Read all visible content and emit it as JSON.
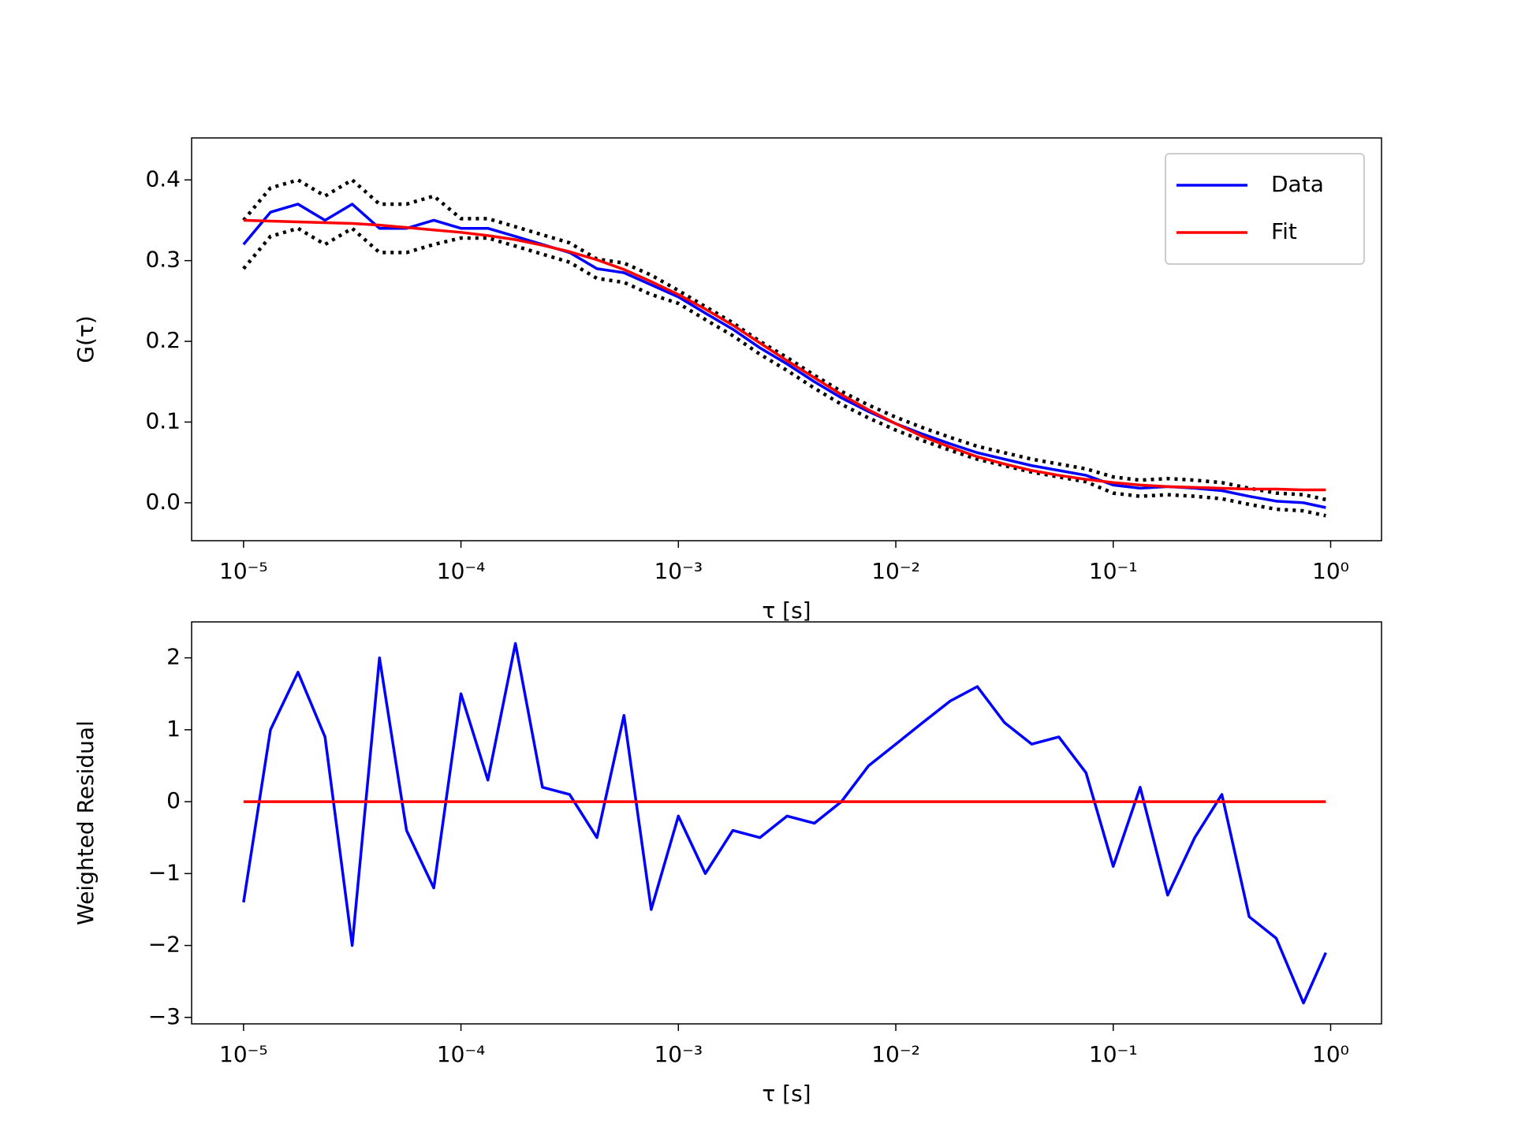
{
  "chart_data": [
    {
      "type": "line",
      "ylabel": "G(τ)",
      "xlabel": "τ [s]",
      "xscale": "log",
      "grid": false,
      "legend": "upper right",
      "x": [
        1e-05,
        1.33e-05,
        1.78e-05,
        2.37e-05,
        3.16e-05,
        4.22e-05,
        5.62e-05,
        7.5e-05,
        0.0001,
        0.000133,
        0.000178,
        0.000237,
        0.000316,
        0.000422,
        0.000562,
        0.00075,
        0.001,
        0.00133,
        0.00178,
        0.00237,
        0.00316,
        0.00422,
        0.00562,
        0.0075,
        0.01,
        0.0133,
        0.0178,
        0.0237,
        0.0316,
        0.0422,
        0.0562,
        0.075,
        0.1,
        0.133,
        0.178,
        0.237,
        0.316,
        0.422,
        0.562,
        0.75,
        0.95
      ],
      "xlim": [
        5.77e-06,
        1.714
      ],
      "xticks": [
        {
          "value": 1e-05,
          "label": "10⁻⁵"
        },
        {
          "value": 0.0001,
          "label": "10⁻⁴"
        },
        {
          "value": 0.001,
          "label": "10⁻³"
        },
        {
          "value": 0.01,
          "label": "10⁻²"
        },
        {
          "value": 0.1,
          "label": "10⁻¹"
        },
        {
          "value": 1,
          "label": "10⁰"
        }
      ],
      "ylim": [
        -0.047,
        0.452
      ],
      "yticks": [
        {
          "value": 0,
          "label": "0.0"
        },
        0.1,
        0.2,
        0.3,
        0.4
      ],
      "series": [
        {
          "color": "#000000",
          "linestyle": "dotted",
          "values": [
            0.35,
            0.39,
            0.4,
            0.38,
            0.4,
            0.37,
            0.37,
            0.38,
            0.352,
            0.352,
            0.342,
            0.332,
            0.322,
            0.302,
            0.297,
            0.282,
            0.263,
            0.243,
            0.223,
            0.2,
            0.18,
            0.158,
            0.138,
            0.121,
            0.106,
            0.093,
            0.081,
            0.07,
            0.062,
            0.054,
            0.048,
            0.042,
            0.032,
            0.028,
            0.03,
            0.028,
            0.025,
            0.018,
            0.012,
            0.01,
            0.004
          ]
        },
        {
          "color": "#000000",
          "linestyle": "dotted",
          "values": [
            0.29,
            0.33,
            0.34,
            0.32,
            0.34,
            0.31,
            0.31,
            0.32,
            0.328,
            0.328,
            0.318,
            0.308,
            0.298,
            0.278,
            0.273,
            0.258,
            0.247,
            0.227,
            0.207,
            0.184,
            0.164,
            0.142,
            0.122,
            0.105,
            0.09,
            0.077,
            0.065,
            0.054,
            0.046,
            0.038,
            0.032,
            0.026,
            0.012,
            0.008,
            0.01,
            0.008,
            0.005,
            -0.002,
            -0.008,
            -0.01,
            -0.016
          ]
        },
        {
          "name": "Data",
          "color": "#0000ff",
          "linestyle": "solid",
          "values": [
            0.32,
            0.36,
            0.37,
            0.35,
            0.37,
            0.34,
            0.34,
            0.35,
            0.34,
            0.34,
            0.33,
            0.32,
            0.31,
            0.29,
            0.285,
            0.27,
            0.255,
            0.235,
            0.215,
            0.192,
            0.172,
            0.15,
            0.13,
            0.113,
            0.098,
            0.085,
            0.073,
            0.062,
            0.054,
            0.046,
            0.04,
            0.034,
            0.022,
            0.018,
            0.02,
            0.018,
            0.015,
            0.008,
            0.002,
            0.0,
            -0.006
          ]
        },
        {
          "name": "Fit",
          "color": "#ff0000",
          "linestyle": "solid",
          "values": [
            0.35,
            0.349,
            0.348,
            0.347,
            0.346,
            0.344,
            0.341,
            0.338,
            0.335,
            0.331,
            0.326,
            0.319,
            0.311,
            0.301,
            0.289,
            0.274,
            0.258,
            0.24,
            0.22,
            0.198,
            0.176,
            0.155,
            0.134,
            0.115,
            0.098,
            0.082,
            0.069,
            0.057,
            0.048,
            0.04,
            0.034,
            0.029,
            0.025,
            0.022,
            0.02,
            0.019,
            0.018,
            0.017,
            0.017,
            0.016,
            0.016
          ]
        }
      ]
    },
    {
      "type": "line",
      "ylabel": "Weighted Residual",
      "xlabel": "τ [s]",
      "xscale": "log",
      "grid": false,
      "x": [
        1e-05,
        1.33e-05,
        1.78e-05,
        2.37e-05,
        3.16e-05,
        4.22e-05,
        5.62e-05,
        7.5e-05,
        0.0001,
        0.000133,
        0.000178,
        0.000237,
        0.000316,
        0.000422,
        0.000562,
        0.00075,
        0.001,
        0.00133,
        0.00178,
        0.00237,
        0.00316,
        0.00422,
        0.00562,
        0.0075,
        0.01,
        0.0133,
        0.0178,
        0.0237,
        0.0316,
        0.0422,
        0.0562,
        0.075,
        0.1,
        0.133,
        0.178,
        0.237,
        0.316,
        0.422,
        0.562,
        0.75,
        0.95
      ],
      "xlim": [
        5.77e-06,
        1.714
      ],
      "xticks": [
        {
          "value": 1e-05,
          "label": "10⁻⁵"
        },
        {
          "value": 0.0001,
          "label": "10⁻⁴"
        },
        {
          "value": 0.001,
          "label": "10⁻³"
        },
        {
          "value": 0.01,
          "label": "10⁻²"
        },
        {
          "value": 0.1,
          "label": "10⁻¹"
        },
        {
          "value": 1,
          "label": "10⁰"
        }
      ],
      "ylim": [
        -3.09,
        2.5
      ],
      "yticks": [
        {
          "value": -3,
          "label": "−3"
        },
        {
          "value": -2,
          "label": "−2"
        },
        {
          "value": -1,
          "label": "−1"
        },
        0,
        1,
        2
      ],
      "series": [
        {
          "color": "#0000ff",
          "linestyle": "solid",
          "values": [
            -1.4,
            1.0,
            1.8,
            0.9,
            -2.0,
            2.0,
            -0.4,
            -1.2,
            1.5,
            0.3,
            2.2,
            0.2,
            0.1,
            -0.5,
            1.2,
            -1.5,
            -0.2,
            -1.0,
            -0.4,
            -0.5,
            -0.2,
            -0.3,
            0.0,
            0.5,
            0.8,
            1.1,
            1.4,
            1.6,
            1.1,
            0.8,
            0.9,
            0.4,
            -0.9,
            0.2,
            -1.3,
            -0.5,
            0.1,
            -1.6,
            -1.9,
            -2.8,
            -2.1
          ]
        },
        {
          "color": "#ff0000",
          "linestyle": "solid",
          "values": [
            0,
            0,
            0,
            0,
            0,
            0,
            0,
            0,
            0,
            0,
            0,
            0,
            0,
            0,
            0,
            0,
            0,
            0,
            0,
            0,
            0,
            0,
            0,
            0,
            0,
            0,
            0,
            0,
            0,
            0,
            0,
            0,
            0,
            0,
            0,
            0,
            0,
            0,
            0,
            0,
            0
          ]
        }
      ]
    }
  ]
}
